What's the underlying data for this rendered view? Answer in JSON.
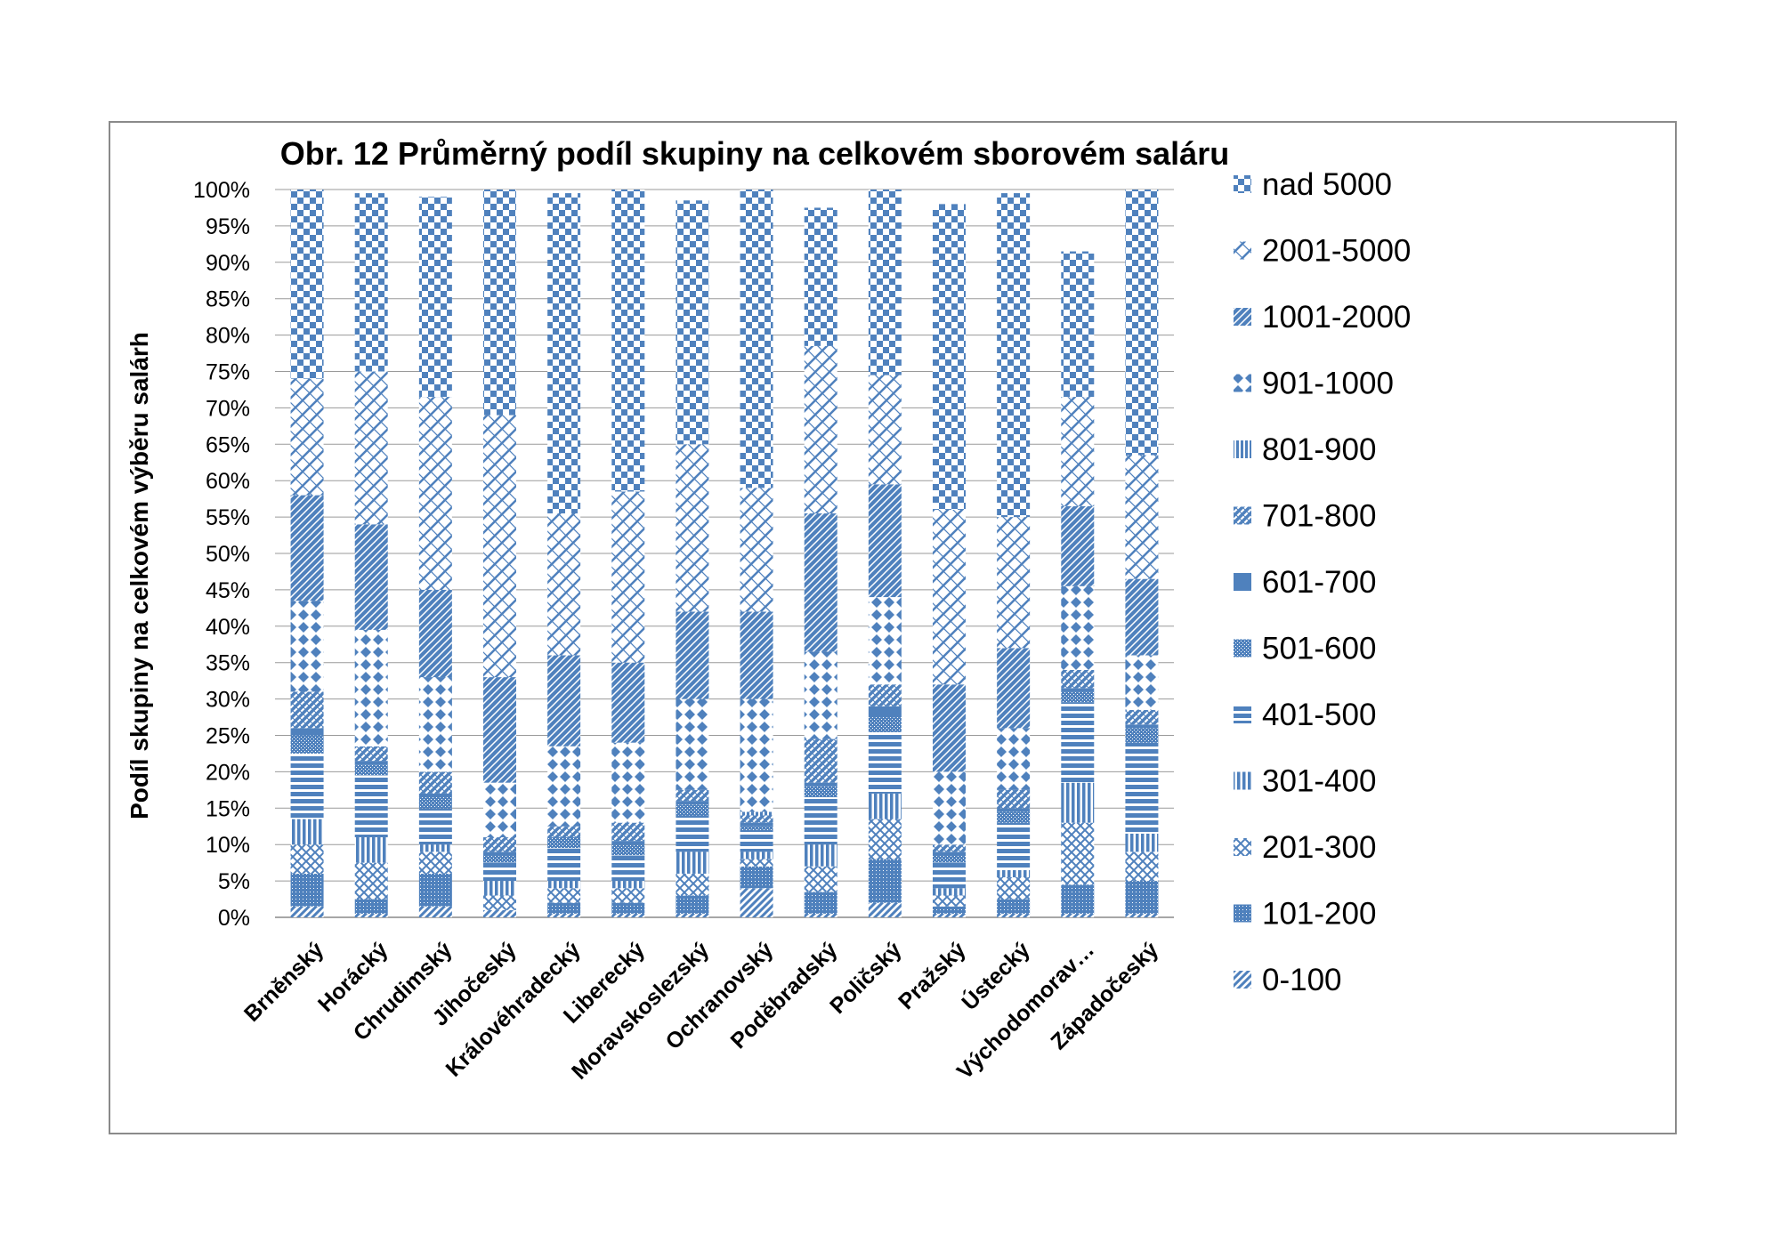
{
  "chart_data": {
    "type": "bar",
    "stacked": true,
    "title": "Obr. 12 Průměrný podíl skupiny na celkovém sborovém saláru",
    "xlabel": "",
    "ylabel": "Podíl skupiny na celkovém výběru salárh",
    "ylim": [
      0,
      1
    ],
    "y_tick_format": "percent",
    "y_ticks": [
      "0%",
      "5%",
      "10%",
      "15%",
      "20%",
      "25%",
      "30%",
      "35%",
      "40%",
      "45%",
      "50%",
      "55%",
      "60%",
      "65%",
      "70%",
      "75%",
      "80%",
      "85%",
      "90%",
      "95%",
      "100%"
    ],
    "grid": true,
    "legend_position": "right",
    "categories": [
      "Brněnský",
      "Horácký",
      "Chrudimský",
      "Jihočeský",
      "Královéhradecký",
      "Liberecký",
      "Moravskoslezský",
      "Ochranovský",
      "Poděbradský",
      "Poličský",
      "Pražský",
      "Ústecký",
      "Východomorav…",
      "Západočeský"
    ],
    "series": [
      {
        "name": "0-100",
        "values": [
          0.015,
          0.005,
          0.015,
          0.01,
          0.005,
          0.005,
          0.005,
          0.04,
          0.005,
          0.02,
          0.005,
          0.005,
          0.005,
          0.005
        ]
      },
      {
        "name": "101-200",
        "values": [
          0.045,
          0.02,
          0.045,
          0.0,
          0.015,
          0.015,
          0.025,
          0.03,
          0.03,
          0.06,
          0.01,
          0.02,
          0.04,
          0.045
        ]
      },
      {
        "name": "201-300",
        "values": [
          0.04,
          0.05,
          0.03,
          0.02,
          0.02,
          0.02,
          0.03,
          0.01,
          0.035,
          0.055,
          0.015,
          0.03,
          0.085,
          0.04
        ]
      },
      {
        "name": "301-400",
        "values": [
          0.035,
          0.035,
          0.01,
          0.02,
          0.01,
          0.01,
          0.03,
          0.01,
          0.03,
          0.035,
          0.01,
          0.01,
          0.055,
          0.025
        ]
      },
      {
        "name": "401-500",
        "values": [
          0.09,
          0.085,
          0.05,
          0.025,
          0.045,
          0.035,
          0.05,
          0.03,
          0.065,
          0.085,
          0.035,
          0.065,
          0.11,
          0.125
        ]
      },
      {
        "name": "501-600",
        "values": [
          0.025,
          0.015,
          0.015,
          0.01,
          0.015,
          0.015,
          0.015,
          0.005,
          0.015,
          0.02,
          0.01,
          0.015,
          0.015,
          0.02
        ]
      },
      {
        "name": "601-700",
        "values": [
          0.01,
          0.005,
          0.005,
          0.005,
          0.0,
          0.005,
          0.005,
          0.005,
          0.005,
          0.015,
          0.005,
          0.005,
          0.005,
          0.005
        ]
      },
      {
        "name": "701-800",
        "values": [
          0.05,
          0.02,
          0.03,
          0.02,
          0.015,
          0.025,
          0.015,
          0.01,
          0.06,
          0.03,
          0.01,
          0.025,
          0.025,
          0.02
        ]
      },
      {
        "name": "801-900",
        "values": [
          0.0,
          0.0,
          0.0,
          0.0,
          0.0,
          0.0,
          0.0,
          0.005,
          0.0,
          0.0,
          0.0,
          0.0,
          0.0,
          0.0
        ]
      },
      {
        "name": "901-1000",
        "values": [
          0.125,
          0.16,
          0.13,
          0.075,
          0.11,
          0.11,
          0.125,
          0.155,
          0.12,
          0.12,
          0.1,
          0.085,
          0.115,
          0.075
        ]
      },
      {
        "name": "1001-2000",
        "values": [
          0.145,
          0.145,
          0.12,
          0.145,
          0.125,
          0.11,
          0.12,
          0.12,
          0.19,
          0.155,
          0.12,
          0.11,
          0.11,
          0.105
        ]
      },
      {
        "name": "2001-5000",
        "values": [
          0.16,
          0.21,
          0.265,
          0.36,
          0.195,
          0.235,
          0.23,
          0.17,
          0.23,
          0.15,
          0.24,
          0.18,
          0.15,
          0.17
        ]
      },
      {
        "name": "nad 5000",
        "values": [
          0.26,
          0.245,
          0.275,
          0.31,
          0.44,
          0.415,
          0.335,
          0.41,
          0.19,
          0.255,
          0.42,
          0.445,
          0.2,
          0.365
        ]
      }
    ]
  }
}
